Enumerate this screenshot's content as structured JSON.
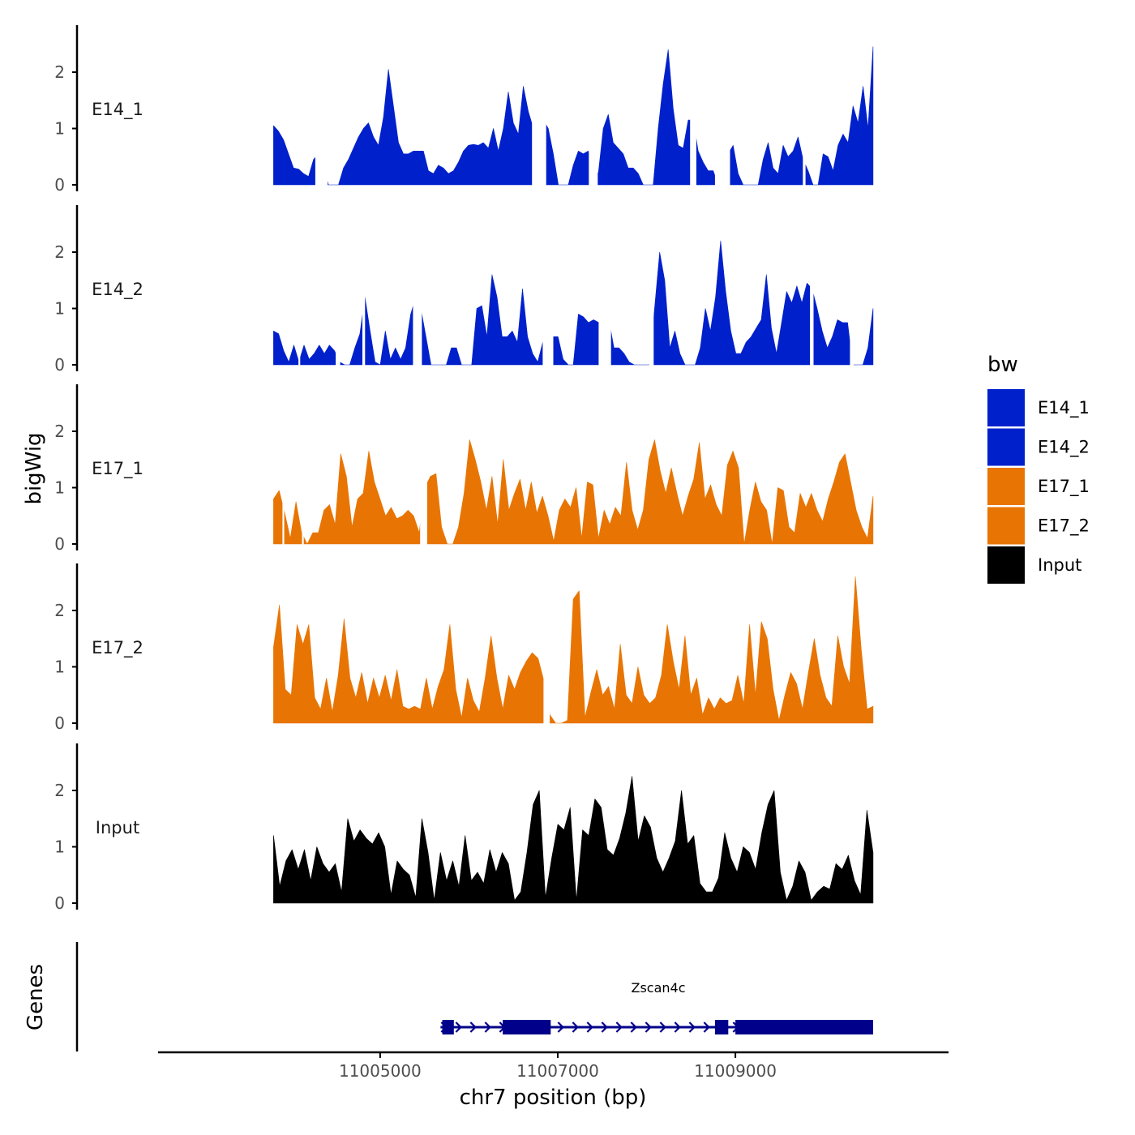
{
  "chart_data": {
    "type": "area",
    "chromosome": "chr7",
    "xlabel": "chr7 position (bp)",
    "ylabel": "bigWig",
    "genes_label": "Genes",
    "xlim": [
      11002500,
      11011400
    ],
    "x_ticks": [
      11005000,
      11007000,
      11009000
    ],
    "x_tick_labels": [
      "11005000",
      "11007000",
      "11009000"
    ],
    "ylim": [
      0,
      2.8
    ],
    "y_ticks": [
      0,
      1,
      2
    ],
    "y_tick_labels": [
      "0",
      "1",
      "2"
    ],
    "legend": {
      "title": "bw",
      "entries": [
        {
          "label": "E14_1",
          "color": "#0020CC"
        },
        {
          "label": "E14_2",
          "color": "#0020CC"
        },
        {
          "label": "E17_1",
          "color": "#E87503"
        },
        {
          "label": "E17_2",
          "color": "#E87503"
        },
        {
          "label": "Input",
          "color": "#000000"
        }
      ]
    },
    "series": [
      {
        "name": "E14_1",
        "color": "#0020CC",
        "x_start": 11003800,
        "x_end": 11010550,
        "values": [
          1.05,
          0.95,
          0.8,
          0.55,
          0.3,
          0.28,
          0.2,
          0.15,
          0.45,
          0.55,
          0.3,
          0.0,
          0.0,
          0.0,
          0.3,
          0.45,
          0.65,
          0.85,
          1.0,
          1.1,
          0.85,
          0.7,
          1.2,
          2.05,
          1.4,
          0.75,
          0.55,
          0.55,
          0.6,
          0.6,
          0.6,
          0.25,
          0.2,
          0.35,
          0.3,
          0.2,
          0.25,
          0.4,
          0.6,
          0.7,
          0.72,
          0.7,
          0.75,
          0.65,
          1.0,
          0.6,
          1.0,
          1.65,
          1.1,
          0.9,
          1.75,
          1.3,
          1.0,
          1.1,
          1.15,
          1.0,
          0.55,
          0.0,
          0.0,
          0.0,
          0.35,
          0.6,
          0.55,
          0.6,
          0.35,
          0.2,
          1.0,
          1.25,
          0.75,
          0.65,
          0.55,
          0.3,
          0.3,
          0.2,
          0.0,
          0.0,
          0.0,
          1.0,
          1.8,
          2.4,
          1.35,
          0.7,
          0.65,
          1.15,
          1.15,
          0.6,
          0.4,
          0.25,
          0.25,
          0.0,
          0.0,
          0.55,
          0.7,
          0.2,
          0.0,
          0.0,
          0.0,
          0.0,
          0.45,
          0.75,
          0.3,
          0.2,
          0.7,
          0.5,
          0.6,
          0.85,
          0.45,
          0.25,
          0.0,
          0.0,
          0.55,
          0.5,
          0.25,
          0.7,
          0.9,
          0.75,
          1.4,
          1.1,
          1.75,
          1.0,
          2.45
        ],
        "gaps": [
          [
            11004270,
            11004410
          ],
          [
            11006710,
            11006870
          ],
          [
            11007350,
            11007450
          ],
          [
            11008490,
            11008560
          ],
          [
            11008770,
            11008940
          ],
          [
            11009760,
            11009790
          ]
        ]
      },
      {
        "name": "E14_2",
        "color": "#0020CC",
        "x_start": 11003800,
        "x_end": 11010550,
        "values": [
          0.6,
          0.55,
          0.25,
          0.05,
          0.35,
          0.05,
          0.35,
          0.1,
          0.2,
          0.35,
          0.2,
          0.35,
          0.25,
          0.05,
          0.0,
          0.0,
          0.3,
          0.55,
          1.2,
          0.6,
          0.05,
          0.0,
          0.6,
          0.1,
          0.3,
          0.1,
          0.3,
          0.9,
          1.2,
          1.0,
          0.5,
          0.0,
          0.0,
          0.0,
          0.0,
          0.3,
          0.3,
          0.0,
          0.0,
          0.0,
          1.0,
          1.05,
          0.5,
          1.6,
          1.2,
          0.5,
          0.5,
          0.6,
          0.4,
          1.35,
          0.5,
          0.2,
          0.05,
          0.4,
          0.5,
          0.5,
          0.5,
          0.1,
          0.0,
          0.0,
          0.9,
          0.85,
          0.75,
          0.8,
          0.75,
          0.8,
          0.8,
          0.3,
          0.3,
          0.2,
          0.05,
          0.0,
          0.0,
          0.0,
          0.0,
          1.0,
          2.0,
          1.5,
          0.3,
          0.6,
          0.2,
          0.0,
          0.0,
          0.0,
          0.3,
          1.0,
          0.6,
          1.2,
          2.2,
          1.3,
          0.6,
          0.2,
          0.2,
          0.4,
          0.5,
          0.65,
          0.8,
          1.6,
          0.65,
          0.2,
          0.75,
          1.3,
          1.1,
          1.4,
          1.1,
          1.45,
          1.35,
          1.0,
          0.6,
          0.3,
          0.5,
          0.8,
          0.75,
          0.75,
          0.0,
          0.0,
          0.0,
          0.3,
          1.0
        ],
        "gaps": [
          [
            11004080,
            11004100
          ],
          [
            11004500,
            11004550
          ],
          [
            11004800,
            11004830
          ],
          [
            11005370,
            11005470
          ],
          [
            11006830,
            11006950
          ],
          [
            11007460,
            11007600
          ],
          [
            11008030,
            11008080
          ],
          [
            11009840,
            11009880
          ],
          [
            11010290,
            11010330
          ]
        ]
      },
      {
        "name": "E17_1",
        "color": "#E87503",
        "x_start": 11003800,
        "x_end": 11010550,
        "values": [
          0.8,
          0.95,
          0.55,
          0.1,
          0.75,
          0.2,
          0.0,
          0.2,
          0.2,
          0.6,
          0.7,
          0.35,
          1.6,
          1.2,
          0.3,
          0.8,
          0.9,
          1.65,
          1.1,
          0.8,
          0.5,
          0.65,
          0.45,
          0.5,
          0.6,
          0.5,
          0.2,
          1.0,
          1.2,
          1.25,
          0.3,
          0.0,
          0.0,
          0.3,
          0.9,
          1.85,
          1.5,
          1.1,
          0.6,
          1.2,
          0.35,
          1.5,
          0.6,
          0.9,
          1.15,
          0.6,
          1.1,
          0.55,
          0.85,
          0.5,
          0.05,
          0.6,
          0.8,
          0.65,
          1.0,
          0.1,
          1.1,
          1.05,
          0.1,
          0.6,
          0.35,
          0.65,
          0.5,
          1.45,
          0.6,
          0.25,
          0.6,
          1.5,
          1.85,
          1.3,
          0.9,
          1.35,
          0.9,
          0.5,
          0.85,
          1.15,
          1.8,
          0.8,
          1.05,
          0.7,
          0.5,
          1.4,
          1.65,
          1.35,
          0.0,
          0.6,
          1.1,
          0.75,
          0.6,
          0.0,
          1.0,
          0.95,
          0.3,
          0.2,
          0.9,
          0.65,
          0.9,
          0.6,
          0.4,
          0.8,
          1.1,
          1.45,
          1.6,
          1.1,
          0.6,
          0.3,
          0.1,
          0.85
        ],
        "gaps": [
          [
            11003900,
            11003920
          ],
          [
            11004120,
            11004140
          ],
          [
            11005450,
            11005530
          ]
        ]
      },
      {
        "name": "E17_2",
        "color": "#E87503",
        "x_start": 11003800,
        "x_end": 11010550,
        "values": [
          1.35,
          2.1,
          0.6,
          0.5,
          1.75,
          1.4,
          1.75,
          0.45,
          0.25,
          0.8,
          0.2,
          0.85,
          1.85,
          0.8,
          0.45,
          0.9,
          0.35,
          0.8,
          0.45,
          0.85,
          0.4,
          0.95,
          0.3,
          0.25,
          0.3,
          0.25,
          0.8,
          0.25,
          0.65,
          0.95,
          1.75,
          0.6,
          0.1,
          0.8,
          0.4,
          0.2,
          0.8,
          1.55,
          0.8,
          0.25,
          0.85,
          0.6,
          0.9,
          1.1,
          1.25,
          1.15,
          0.75,
          0.15,
          0.0,
          0.0,
          0.05,
          2.2,
          2.35,
          0.1,
          0.55,
          0.95,
          0.5,
          0.65,
          0.25,
          1.4,
          0.5,
          0.35,
          1.0,
          0.5,
          0.35,
          0.45,
          0.85,
          1.75,
          1.1,
          0.6,
          1.55,
          0.5,
          0.8,
          0.15,
          0.45,
          0.25,
          0.45,
          0.35,
          0.4,
          0.85,
          0.35,
          1.75,
          0.5,
          1.8,
          1.5,
          0.6,
          0.05,
          0.5,
          0.9,
          0.7,
          0.25,
          0.9,
          1.5,
          0.85,
          0.45,
          0.3,
          1.55,
          1.0,
          0.7,
          2.6,
          1.3,
          0.25,
          0.3
        ],
        "gaps": [
          [
            11006840,
            11006910
          ]
        ]
      },
      {
        "name": "Input",
        "color": "#000000",
        "x_start": 11003800,
        "x_end": 11010550,
        "values": [
          1.2,
          0.3,
          0.75,
          0.95,
          0.6,
          0.95,
          0.4,
          1.0,
          0.7,
          0.55,
          0.7,
          0.2,
          1.5,
          1.1,
          1.3,
          1.15,
          1.05,
          1.25,
          1.0,
          0.15,
          0.75,
          0.6,
          0.5,
          0.1,
          1.5,
          0.9,
          0.05,
          0.9,
          0.4,
          0.75,
          0.3,
          1.2,
          0.4,
          0.55,
          0.35,
          0.95,
          0.55,
          0.9,
          0.7,
          0.05,
          0.2,
          0.9,
          1.75,
          2.0,
          0.1,
          0.8,
          1.4,
          1.3,
          1.7,
          0.05,
          1.3,
          1.2,
          1.85,
          1.7,
          0.95,
          0.85,
          1.15,
          1.6,
          2.25,
          1.1,
          1.55,
          1.35,
          0.8,
          0.55,
          0.8,
          1.1,
          2.0,
          1.05,
          1.2,
          0.35,
          0.2,
          0.2,
          0.45,
          1.25,
          0.8,
          0.55,
          1.0,
          0.9,
          0.6,
          1.25,
          1.75,
          2.0,
          0.55,
          0.05,
          0.3,
          0.75,
          0.55,
          0.05,
          0.2,
          0.3,
          0.25,
          0.7,
          0.6,
          0.85,
          0.4,
          0.15,
          1.65,
          0.9
        ]
      }
    ],
    "gene_track": {
      "gene_name": "Zscan4c",
      "color": "#00008B",
      "strand": "+",
      "start": 11005680,
      "end": 11010550,
      "exons": [
        [
          11005700,
          11005830
        ],
        [
          11006380,
          11006920
        ],
        [
          11008770,
          11008920
        ],
        [
          11009000,
          11010550
        ]
      ]
    }
  }
}
